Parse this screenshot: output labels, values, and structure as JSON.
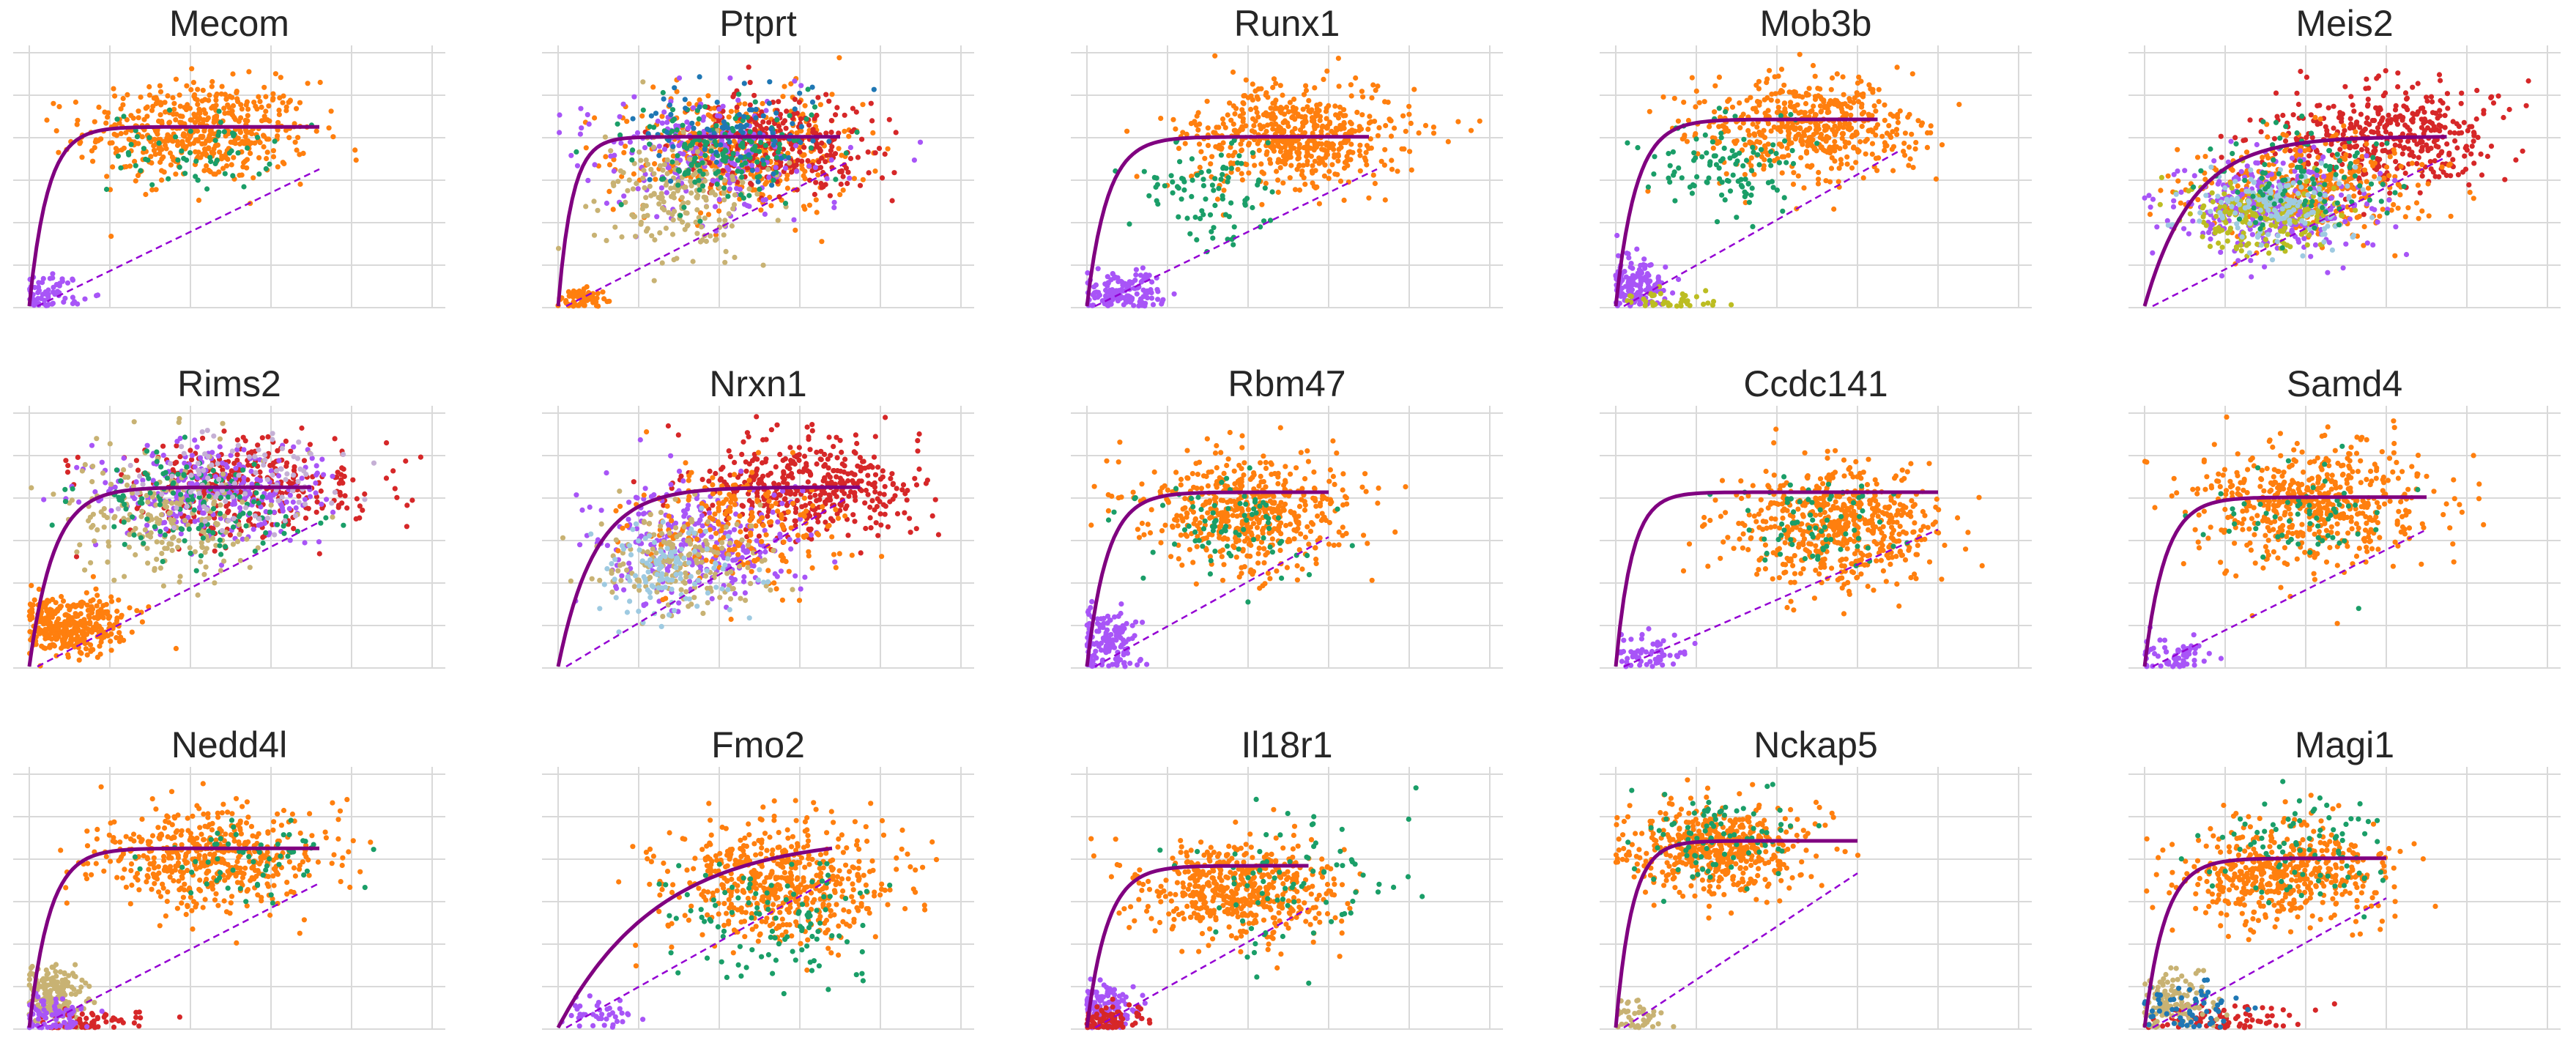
{
  "figure": {
    "rows": 3,
    "cols": 5,
    "style": "scatter of unspliced vs spliced counts with fitted steady-state curve (solid) and linear fit (dashed)",
    "grid": true,
    "fit_color": "#800080",
    "dashed_color": "#9400D3"
  },
  "palette": {
    "orange": "#ff7f0e",
    "green": "#1a9e68",
    "purple": "#a855f7",
    "crimson": "#d62728",
    "olive": "#bcbd22",
    "tan": "#c8b273",
    "blue": "#1f77b4",
    "pink": "#e377c2",
    "lightblue": "#9ecae1",
    "lilac": "#c5b0d5"
  },
  "chart_data": [
    {
      "type": "scatter",
      "title": "Mecom",
      "clusters": [
        {
          "color": "orange",
          "cx": 0.42,
          "cy": 0.7,
          "sx": 0.14,
          "sy": 0.1,
          "n": 520
        },
        {
          "color": "green",
          "cx": 0.4,
          "cy": 0.62,
          "sx": 0.1,
          "sy": 0.08,
          "n": 60
        },
        {
          "color": "purple",
          "cx": 0.05,
          "cy": 0.05,
          "sx": 0.04,
          "sy": 0.04,
          "n": 70
        }
      ],
      "curve": {
        "xmax": 0.72,
        "ymax": 0.72,
        "k": 0.045
      },
      "dash": {
        "x0": 0.02,
        "y0": 0.0,
        "x1": 0.72,
        "y1": 0.55
      }
    },
    {
      "type": "scatter",
      "title": "Ptprt",
      "clusters": [
        {
          "color": "orange",
          "cx": 0.45,
          "cy": 0.62,
          "sx": 0.15,
          "sy": 0.12,
          "n": 380
        },
        {
          "color": "crimson",
          "cx": 0.55,
          "cy": 0.65,
          "sx": 0.12,
          "sy": 0.1,
          "n": 280
        },
        {
          "color": "purple",
          "cx": 0.35,
          "cy": 0.6,
          "sx": 0.14,
          "sy": 0.12,
          "n": 230
        },
        {
          "color": "tan",
          "cx": 0.3,
          "cy": 0.45,
          "sx": 0.1,
          "sy": 0.12,
          "n": 200
        },
        {
          "color": "green",
          "cx": 0.4,
          "cy": 0.62,
          "sx": 0.12,
          "sy": 0.1,
          "n": 160
        },
        {
          "color": "blue",
          "cx": 0.45,
          "cy": 0.7,
          "sx": 0.12,
          "sy": 0.1,
          "n": 80
        },
        {
          "color": "orange",
          "cx": 0.05,
          "cy": 0.03,
          "sx": 0.03,
          "sy": 0.02,
          "n": 70
        }
      ],
      "curve": {
        "xmax": 0.7,
        "ymax": 0.68,
        "k": 0.035
      },
      "dash": {
        "x0": 0.02,
        "y0": 0.0,
        "x1": 0.72,
        "y1": 0.58
      }
    },
    {
      "type": "scatter",
      "title": "Runx1",
      "clusters": [
        {
          "color": "orange",
          "cx": 0.52,
          "cy": 0.68,
          "sx": 0.14,
          "sy": 0.1,
          "n": 560
        },
        {
          "color": "green",
          "cx": 0.3,
          "cy": 0.45,
          "sx": 0.08,
          "sy": 0.1,
          "n": 90
        },
        {
          "color": "purple",
          "cx": 0.08,
          "cy": 0.06,
          "sx": 0.06,
          "sy": 0.04,
          "n": 140
        }
      ],
      "curve": {
        "xmax": 0.7,
        "ymax": 0.68,
        "k": 0.05
      },
      "dash": {
        "x0": 0.02,
        "y0": 0.0,
        "x1": 0.72,
        "y1": 0.55
      }
    },
    {
      "type": "scatter",
      "title": "Mob3b",
      "clusters": [
        {
          "color": "orange",
          "cx": 0.48,
          "cy": 0.72,
          "sx": 0.13,
          "sy": 0.1,
          "n": 520
        },
        {
          "color": "green",
          "cx": 0.28,
          "cy": 0.55,
          "sx": 0.1,
          "sy": 0.1,
          "n": 110
        },
        {
          "color": "purple",
          "cx": 0.05,
          "cy": 0.08,
          "sx": 0.04,
          "sy": 0.06,
          "n": 160
        },
        {
          "color": "olive",
          "cx": 0.15,
          "cy": 0.02,
          "sx": 0.06,
          "sy": 0.02,
          "n": 40
        }
      ],
      "curve": {
        "xmax": 0.65,
        "ymax": 0.75,
        "k": 0.05
      },
      "dash": {
        "x0": 0.02,
        "y0": 0.0,
        "x1": 0.7,
        "y1": 0.62
      }
    },
    {
      "type": "scatter",
      "title": "Meis2",
      "clusters": [
        {
          "color": "crimson",
          "cx": 0.6,
          "cy": 0.68,
          "sx": 0.14,
          "sy": 0.1,
          "n": 420
        },
        {
          "color": "orange",
          "cx": 0.4,
          "cy": 0.48,
          "sx": 0.15,
          "sy": 0.1,
          "n": 360
        },
        {
          "color": "purple",
          "cx": 0.32,
          "cy": 0.4,
          "sx": 0.12,
          "sy": 0.1,
          "n": 300
        },
        {
          "color": "olive",
          "cx": 0.3,
          "cy": 0.36,
          "sx": 0.1,
          "sy": 0.08,
          "n": 200
        },
        {
          "color": "lightblue",
          "cx": 0.35,
          "cy": 0.4,
          "sx": 0.1,
          "sy": 0.08,
          "n": 160
        },
        {
          "color": "green",
          "cx": 0.38,
          "cy": 0.5,
          "sx": 0.12,
          "sy": 0.1,
          "n": 100
        }
      ],
      "curve": {
        "xmax": 0.75,
        "ymax": 0.68,
        "k": 0.12
      },
      "dash": {
        "x0": 0.02,
        "y0": 0.0,
        "x1": 0.75,
        "y1": 0.6
      }
    },
    {
      "type": "scatter",
      "title": "Rims2",
      "clusters": [
        {
          "color": "crimson",
          "cx": 0.55,
          "cy": 0.72,
          "sx": 0.15,
          "sy": 0.1,
          "n": 340
        },
        {
          "color": "purple",
          "cx": 0.45,
          "cy": 0.7,
          "sx": 0.15,
          "sy": 0.1,
          "n": 300
        },
        {
          "color": "orange",
          "cx": 0.1,
          "cy": 0.17,
          "sx": 0.07,
          "sy": 0.06,
          "n": 360
        },
        {
          "color": "tan",
          "cx": 0.35,
          "cy": 0.6,
          "sx": 0.12,
          "sy": 0.12,
          "n": 220
        },
        {
          "color": "green",
          "cx": 0.4,
          "cy": 0.65,
          "sx": 0.12,
          "sy": 0.1,
          "n": 140
        },
        {
          "color": "lilac",
          "cx": 0.5,
          "cy": 0.75,
          "sx": 0.12,
          "sy": 0.1,
          "n": 100
        }
      ],
      "curve": {
        "xmax": 0.7,
        "ymax": 0.72,
        "k": 0.06
      },
      "dash": {
        "x0": 0.02,
        "y0": 0.0,
        "x1": 0.72,
        "y1": 0.58
      }
    },
    {
      "type": "scatter",
      "title": "Nrxn1",
      "clusters": [
        {
          "color": "crimson",
          "cx": 0.62,
          "cy": 0.72,
          "sx": 0.14,
          "sy": 0.1,
          "n": 420
        },
        {
          "color": "purple",
          "cx": 0.35,
          "cy": 0.5,
          "sx": 0.12,
          "sy": 0.12,
          "n": 300
        },
        {
          "color": "orange",
          "cx": 0.45,
          "cy": 0.55,
          "sx": 0.14,
          "sy": 0.12,
          "n": 220
        },
        {
          "color": "tan",
          "cx": 0.3,
          "cy": 0.42,
          "sx": 0.1,
          "sy": 0.1,
          "n": 180
        },
        {
          "color": "lightblue",
          "cx": 0.28,
          "cy": 0.38,
          "sx": 0.08,
          "sy": 0.1,
          "n": 120
        }
      ],
      "curve": {
        "xmax": 0.75,
        "ymax": 0.72,
        "k": 0.09
      },
      "dash": {
        "x0": 0.02,
        "y0": 0.0,
        "x1": 0.72,
        "y1": 0.68
      }
    },
    {
      "type": "scatter",
      "title": "Rbm47",
      "clusters": [
        {
          "color": "orange",
          "cx": 0.4,
          "cy": 0.62,
          "sx": 0.13,
          "sy": 0.12,
          "n": 520
        },
        {
          "color": "green",
          "cx": 0.35,
          "cy": 0.55,
          "sx": 0.1,
          "sy": 0.1,
          "n": 80
        },
        {
          "color": "purple",
          "cx": 0.05,
          "cy": 0.1,
          "sx": 0.04,
          "sy": 0.07,
          "n": 140
        }
      ],
      "curve": {
        "xmax": 0.6,
        "ymax": 0.7,
        "k": 0.05
      },
      "dash": {
        "x0": 0.02,
        "y0": 0.0,
        "x1": 0.6,
        "y1": 0.52
      }
    },
    {
      "type": "scatter",
      "title": "Ccdc141",
      "clusters": [
        {
          "color": "orange",
          "cx": 0.55,
          "cy": 0.56,
          "sx": 0.13,
          "sy": 0.12,
          "n": 580
        },
        {
          "color": "green",
          "cx": 0.5,
          "cy": 0.58,
          "sx": 0.1,
          "sy": 0.1,
          "n": 70
        },
        {
          "color": "purple",
          "cx": 0.08,
          "cy": 0.05,
          "sx": 0.05,
          "sy": 0.04,
          "n": 60
        }
      ],
      "curve": {
        "xmax": 0.8,
        "ymax": 0.7,
        "k": 0.04
      },
      "dash": {
        "x0": 0.02,
        "y0": 0.0,
        "x1": 0.8,
        "y1": 0.55
      }
    },
    {
      "type": "scatter",
      "title": "Samd4",
      "clusters": [
        {
          "color": "orange",
          "cx": 0.42,
          "cy": 0.65,
          "sx": 0.14,
          "sy": 0.12,
          "n": 560
        },
        {
          "color": "green",
          "cx": 0.4,
          "cy": 0.6,
          "sx": 0.1,
          "sy": 0.1,
          "n": 60
        },
        {
          "color": "purple",
          "cx": 0.08,
          "cy": 0.04,
          "sx": 0.05,
          "sy": 0.04,
          "n": 60
        }
      ],
      "curve": {
        "xmax": 0.7,
        "ymax": 0.68,
        "k": 0.05
      },
      "dash": {
        "x0": 0.02,
        "y0": 0.0,
        "x1": 0.7,
        "y1": 0.55
      }
    },
    {
      "type": "scatter",
      "title": "Nedd4l",
      "clusters": [
        {
          "color": "orange",
          "cx": 0.45,
          "cy": 0.68,
          "sx": 0.14,
          "sy": 0.1,
          "n": 500
        },
        {
          "color": "green",
          "cx": 0.55,
          "cy": 0.7,
          "sx": 0.12,
          "sy": 0.1,
          "n": 60
        },
        {
          "color": "tan",
          "cx": 0.06,
          "cy": 0.12,
          "sx": 0.04,
          "sy": 0.06,
          "n": 200
        },
        {
          "color": "crimson",
          "cx": 0.15,
          "cy": 0.02,
          "sx": 0.08,
          "sy": 0.02,
          "n": 60
        },
        {
          "color": "purple",
          "cx": 0.06,
          "cy": 0.05,
          "sx": 0.04,
          "sy": 0.04,
          "n": 80
        }
      ],
      "curve": {
        "xmax": 0.72,
        "ymax": 0.72,
        "k": 0.05
      },
      "dash": {
        "x0": 0.02,
        "y0": 0.0,
        "x1": 0.72,
        "y1": 0.58
      }
    },
    {
      "type": "scatter",
      "title": "Fmo2",
      "clusters": [
        {
          "color": "orange",
          "cx": 0.55,
          "cy": 0.58,
          "sx": 0.14,
          "sy": 0.12,
          "n": 560
        },
        {
          "color": "green",
          "cx": 0.55,
          "cy": 0.45,
          "sx": 0.12,
          "sy": 0.12,
          "n": 110
        },
        {
          "color": "purple",
          "cx": 0.1,
          "cy": 0.05,
          "sx": 0.05,
          "sy": 0.04,
          "n": 40
        }
      ],
      "curve": {
        "xmax": 0.68,
        "ymax": 0.72,
        "k": 0.25
      },
      "dash": {
        "x0": 0.02,
        "y0": 0.0,
        "x1": 0.68,
        "y1": 0.6
      }
    },
    {
      "type": "scatter",
      "title": "Il18r1",
      "clusters": [
        {
          "color": "orange",
          "cx": 0.38,
          "cy": 0.55,
          "sx": 0.12,
          "sy": 0.1,
          "n": 520
        },
        {
          "color": "green",
          "cx": 0.5,
          "cy": 0.6,
          "sx": 0.15,
          "sy": 0.14,
          "n": 80
        },
        {
          "color": "purple",
          "cx": 0.05,
          "cy": 0.07,
          "sx": 0.04,
          "sy": 0.05,
          "n": 140
        },
        {
          "color": "crimson",
          "cx": 0.06,
          "cy": 0.03,
          "sx": 0.04,
          "sy": 0.03,
          "n": 80
        }
      ],
      "curve": {
        "xmax": 0.55,
        "ymax": 0.65,
        "k": 0.05
      },
      "dash": {
        "x0": 0.02,
        "y0": 0.0,
        "x1": 0.55,
        "y1": 0.48
      }
    },
    {
      "type": "scatter",
      "title": "Nckap5",
      "clusters": [
        {
          "color": "orange",
          "cx": 0.25,
          "cy": 0.72,
          "sx": 0.11,
          "sy": 0.09,
          "n": 520
        },
        {
          "color": "green",
          "cx": 0.25,
          "cy": 0.78,
          "sx": 0.1,
          "sy": 0.1,
          "n": 90
        },
        {
          "color": "tan",
          "cx": 0.05,
          "cy": 0.05,
          "sx": 0.04,
          "sy": 0.04,
          "n": 40
        }
      ],
      "curve": {
        "xmax": 0.6,
        "ymax": 0.75,
        "k": 0.04
      },
      "dash": {
        "x0": 0.02,
        "y0": 0.0,
        "x1": 0.6,
        "y1": 0.62
      }
    },
    {
      "type": "scatter",
      "title": "Magi1",
      "clusters": [
        {
          "color": "orange",
          "cx": 0.35,
          "cy": 0.62,
          "sx": 0.13,
          "sy": 0.1,
          "n": 500
        },
        {
          "color": "green",
          "cx": 0.4,
          "cy": 0.72,
          "sx": 0.12,
          "sy": 0.12,
          "n": 90
        },
        {
          "color": "crimson",
          "cx": 0.2,
          "cy": 0.04,
          "sx": 0.1,
          "sy": 0.03,
          "n": 80
        },
        {
          "color": "tan",
          "cx": 0.08,
          "cy": 0.1,
          "sx": 0.05,
          "sy": 0.06,
          "n": 120
        },
        {
          "color": "blue",
          "cx": 0.1,
          "cy": 0.08,
          "sx": 0.06,
          "sy": 0.05,
          "n": 60
        }
      ],
      "curve": {
        "xmax": 0.6,
        "ymax": 0.68,
        "k": 0.05
      },
      "dash": {
        "x0": 0.02,
        "y0": 0.0,
        "x1": 0.6,
        "y1": 0.52
      }
    }
  ]
}
